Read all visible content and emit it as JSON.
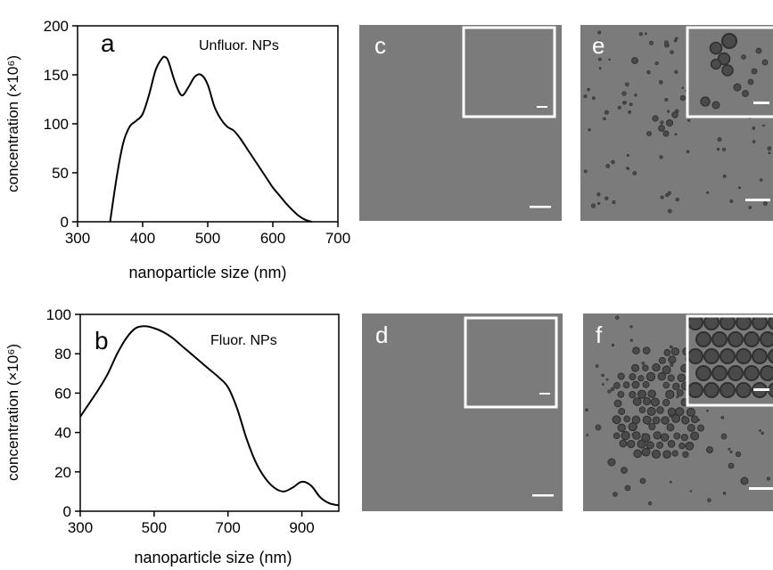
{
  "chart_data": [
    {
      "panel": "a",
      "type": "line",
      "annotation": "Unfluor. NPs",
      "xlabel": "nanoparticle size (nm)",
      "ylabel": "concentration (×10⁶)",
      "xlim": [
        300,
        700
      ],
      "ylim": [
        0,
        200
      ],
      "xticks": [
        "300",
        "400",
        "500",
        "600",
        "700"
      ],
      "yticks": [
        "0",
        "50",
        "100",
        "150",
        "200"
      ],
      "grid": false,
      "x": [
        350,
        360,
        370,
        380,
        390,
        400,
        410,
        420,
        430,
        435,
        440,
        450,
        460,
        470,
        480,
        490,
        500,
        510,
        520,
        530,
        540,
        550,
        560,
        570,
        580,
        590,
        600,
        610,
        620,
        630,
        640,
        650,
        660
      ],
      "values": [
        0,
        45,
        80,
        97,
        103,
        110,
        130,
        155,
        167,
        168,
        163,
        142,
        129,
        137,
        148,
        150,
        140,
        118,
        105,
        97,
        93,
        85,
        75,
        65,
        55,
        45,
        35,
        27,
        19,
        12,
        6,
        2,
        0
      ]
    },
    {
      "panel": "b",
      "type": "line",
      "annotation": "Fluor. NPs",
      "xlabel": "nanoparticle size (nm)",
      "ylabel": "concentration (×10⁶)",
      "xlim": [
        300,
        1000
      ],
      "ylim": [
        0,
        100
      ],
      "xticks": [
        "300",
        "500",
        "700",
        "900"
      ],
      "yticks": [
        "0",
        "20",
        "40",
        "60",
        "80",
        "100"
      ],
      "grid": false,
      "x": [
        300,
        325,
        350,
        375,
        400,
        425,
        450,
        475,
        500,
        525,
        550,
        575,
        600,
        625,
        650,
        675,
        700,
        725,
        750,
        775,
        800,
        825,
        850,
        875,
        900,
        925,
        950,
        975,
        1000
      ],
      "values": [
        48,
        55,
        62,
        70,
        80,
        88,
        93,
        94,
        93,
        91,
        88,
        84,
        80,
        76,
        72,
        68,
        63,
        52,
        37,
        25,
        17,
        12,
        10,
        12,
        15,
        13,
        7,
        4,
        3
      ]
    }
  ],
  "micrographs": [
    {
      "label": "c",
      "content": "blank"
    },
    {
      "label": "d",
      "content": "blank"
    },
    {
      "label": "e",
      "content": "sparse-particles"
    },
    {
      "label": "f",
      "content": "dense-particles"
    }
  ],
  "colors": {
    "line": "#000000",
    "micrograph_bg": "#7b7b7b",
    "particle_fill": "#4a4a4a",
    "particle_rim": "#2f2f2f",
    "scalebar": "#ffffff"
  }
}
